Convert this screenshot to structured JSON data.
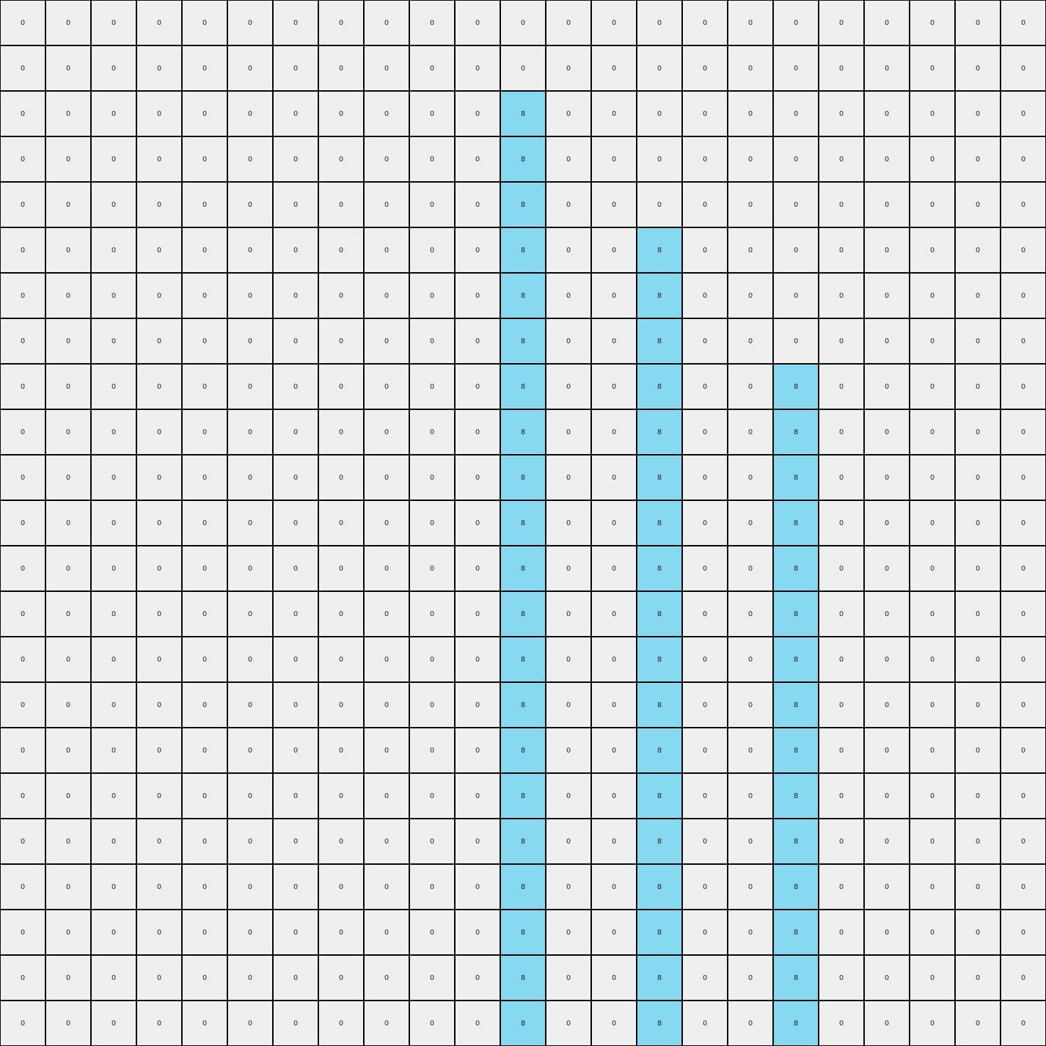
{
  "colors": {
    "0": "#efefef",
    "8": "#87d8f1"
  },
  "grid": [
    [
      0,
      0,
      0,
      0,
      0,
      0,
      0,
      0,
      0,
      0,
      0,
      0,
      0,
      0,
      0,
      0,
      0,
      0,
      0,
      0,
      0,
      0,
      0
    ],
    [
      0,
      0,
      0,
      0,
      0,
      0,
      0,
      0,
      0,
      0,
      0,
      0,
      0,
      0,
      0,
      0,
      0,
      0,
      0,
      0,
      0,
      0,
      0
    ],
    [
      0,
      0,
      0,
      0,
      0,
      0,
      0,
      0,
      0,
      0,
      0,
      8,
      0,
      0,
      0,
      0,
      0,
      0,
      0,
      0,
      0,
      0,
      0
    ],
    [
      0,
      0,
      0,
      0,
      0,
      0,
      0,
      0,
      0,
      0,
      0,
      8,
      0,
      0,
      0,
      0,
      0,
      0,
      0,
      0,
      0,
      0,
      0
    ],
    [
      0,
      0,
      0,
      0,
      0,
      0,
      0,
      0,
      0,
      0,
      0,
      8,
      0,
      0,
      0,
      0,
      0,
      0,
      0,
      0,
      0,
      0,
      0
    ],
    [
      0,
      0,
      0,
      0,
      0,
      0,
      0,
      0,
      0,
      0,
      0,
      8,
      0,
      0,
      8,
      0,
      0,
      0,
      0,
      0,
      0,
      0,
      0
    ],
    [
      0,
      0,
      0,
      0,
      0,
      0,
      0,
      0,
      0,
      0,
      0,
      8,
      0,
      0,
      8,
      0,
      0,
      0,
      0,
      0,
      0,
      0,
      0
    ],
    [
      0,
      0,
      0,
      0,
      0,
      0,
      0,
      0,
      0,
      0,
      0,
      8,
      0,
      0,
      8,
      0,
      0,
      0,
      0,
      0,
      0,
      0,
      0
    ],
    [
      0,
      0,
      0,
      0,
      0,
      0,
      0,
      0,
      0,
      0,
      0,
      8,
      0,
      0,
      8,
      0,
      0,
      8,
      0,
      0,
      0,
      0,
      0
    ],
    [
      0,
      0,
      0,
      0,
      0,
      0,
      0,
      0,
      0,
      0,
      0,
      8,
      0,
      0,
      8,
      0,
      0,
      8,
      0,
      0,
      0,
      0,
      0
    ],
    [
      0,
      0,
      0,
      0,
      0,
      0,
      0,
      0,
      0,
      0,
      0,
      8,
      0,
      0,
      8,
      0,
      0,
      8,
      0,
      0,
      0,
      0,
      0
    ],
    [
      0,
      0,
      0,
      0,
      0,
      0,
      0,
      0,
      0,
      0,
      0,
      8,
      0,
      0,
      8,
      0,
      0,
      8,
      0,
      0,
      0,
      0,
      0
    ],
    [
      0,
      0,
      0,
      0,
      0,
      0,
      0,
      0,
      0,
      0,
      0,
      8,
      0,
      0,
      8,
      0,
      0,
      8,
      0,
      0,
      0,
      0,
      0
    ],
    [
      0,
      0,
      0,
      0,
      0,
      0,
      0,
      0,
      0,
      0,
      0,
      8,
      0,
      0,
      8,
      0,
      0,
      8,
      0,
      0,
      0,
      0,
      0
    ],
    [
      0,
      0,
      0,
      0,
      0,
      0,
      0,
      0,
      0,
      0,
      0,
      8,
      0,
      0,
      8,
      0,
      0,
      8,
      0,
      0,
      0,
      0,
      0
    ],
    [
      0,
      0,
      0,
      0,
      0,
      0,
      0,
      0,
      0,
      0,
      0,
      8,
      0,
      0,
      8,
      0,
      0,
      8,
      0,
      0,
      0,
      0,
      0
    ],
    [
      0,
      0,
      0,
      0,
      0,
      0,
      0,
      0,
      0,
      0,
      0,
      8,
      0,
      0,
      8,
      0,
      0,
      8,
      0,
      0,
      0,
      0,
      0
    ],
    [
      0,
      0,
      0,
      0,
      0,
      0,
      0,
      0,
      0,
      0,
      0,
      8,
      0,
      0,
      8,
      0,
      0,
      8,
      0,
      0,
      0,
      0,
      0
    ],
    [
      0,
      0,
      0,
      0,
      0,
      0,
      0,
      0,
      0,
      0,
      0,
      8,
      0,
      0,
      8,
      0,
      0,
      8,
      0,
      0,
      0,
      0,
      0
    ],
    [
      0,
      0,
      0,
      0,
      0,
      0,
      0,
      0,
      0,
      0,
      0,
      8,
      0,
      0,
      8,
      0,
      0,
      8,
      0,
      0,
      0,
      0,
      0
    ],
    [
      0,
      0,
      0,
      0,
      0,
      0,
      0,
      0,
      0,
      0,
      0,
      8,
      0,
      0,
      8,
      0,
      0,
      8,
      0,
      0,
      0,
      0,
      0
    ],
    [
      0,
      0,
      0,
      0,
      0,
      0,
      0,
      0,
      0,
      0,
      0,
      8,
      0,
      0,
      8,
      0,
      0,
      8,
      0,
      0,
      0,
      0,
      0
    ],
    [
      0,
      0,
      0,
      0,
      0,
      0,
      0,
      0,
      0,
      0,
      0,
      8,
      0,
      0,
      8,
      0,
      0,
      8,
      0,
      0,
      0,
      0,
      0
    ]
  ]
}
